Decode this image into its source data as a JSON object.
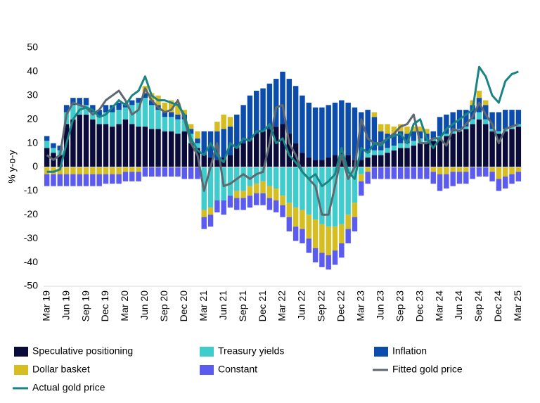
{
  "chart_data": {
    "type": "bar",
    "ylabel": "% y-o-y",
    "categories": [
      "Mar 19",
      null,
      null,
      "Jun 19",
      null,
      null,
      "Sep 19",
      null,
      null,
      "Dec 19",
      null,
      null,
      "Mar 20",
      null,
      null,
      "Jun 20",
      null,
      null,
      "Sep 20",
      null,
      null,
      "Dec 20",
      null,
      null,
      "Mar 21",
      null,
      null,
      "Jun 21",
      null,
      null,
      "Sep 21",
      null,
      null,
      "Dec 21",
      null,
      null,
      "Mar 22",
      null,
      null,
      "Jun 22",
      null,
      null,
      "Sep 22",
      null,
      null,
      "Dec 22",
      null,
      null,
      "Mar 23",
      null,
      null,
      "Jun 23",
      null,
      null,
      "Sep 23",
      null,
      null,
      "Dec 23",
      null,
      null,
      "Mar 24",
      null,
      null,
      "Jun 24",
      null,
      null,
      "Sep 24",
      null,
      null,
      "Dec 24",
      null,
      null,
      "Mar 25"
    ],
    "ylim": [
      -50,
      50
    ],
    "yticks": [
      -50,
      -40,
      -30,
      -20,
      -10,
      0,
      10,
      20,
      30,
      40,
      50
    ],
    "series": [
      {
        "name": "Speculative positioning",
        "color": "#0b0b3b",
        "values": [
          8,
          6,
          5,
          18,
          20,
          22,
          22,
          20,
          18,
          18,
          17,
          18,
          20,
          18,
          17,
          17,
          16,
          16,
          15,
          15,
          14,
          15,
          10,
          8,
          5,
          4,
          3,
          4,
          5,
          8,
          10,
          12,
          14,
          15,
          16,
          17,
          18,
          14,
          10,
          6,
          4,
          3,
          3,
          4,
          5,
          6,
          5,
          3,
          3,
          4,
          5,
          5,
          6,
          7,
          8,
          8,
          9,
          10,
          10,
          11,
          12,
          13,
          14,
          15,
          16,
          18,
          20,
          18,
          15,
          14,
          15,
          16,
          17
        ]
      },
      {
        "name": "Treasury yields",
        "color": "#40cccc",
        "values": [
          3,
          2,
          2,
          5,
          6,
          4,
          4,
          3,
          3,
          5,
          6,
          6,
          5,
          8,
          10,
          12,
          10,
          8,
          6,
          6,
          6,
          5,
          4,
          2,
          -18,
          -17,
          -14,
          -14,
          -12,
          -10,
          -10,
          -8,
          -7,
          -6,
          -8,
          -9,
          -12,
          -15,
          -17,
          -18,
          -20,
          -22,
          -24,
          -25,
          -25,
          -24,
          -20,
          -15,
          -3,
          2,
          2,
          2,
          2,
          2,
          2,
          2,
          2,
          2,
          1,
          1,
          1,
          1,
          1,
          1,
          1,
          2,
          3,
          2,
          1,
          1,
          1,
          1,
          1
        ]
      },
      {
        "name": "Inflation",
        "color": "#0b4cad",
        "values": [
          2,
          2,
          2,
          3,
          3,
          3,
          3,
          3,
          3,
          3,
          3,
          3,
          2,
          2,
          2,
          2,
          2,
          2,
          2,
          2,
          2,
          2,
          2,
          2,
          10,
          11,
          12,
          12,
          12,
          14,
          16,
          18,
          18,
          18,
          19,
          20,
          22,
          23,
          24,
          24,
          23,
          22,
          22,
          22,
          22,
          22,
          22,
          22,
          20,
          18,
          14,
          8,
          6,
          5,
          5,
          4,
          4,
          3,
          3,
          3,
          8,
          8,
          8,
          8,
          7,
          6,
          6,
          6,
          7,
          8,
          8,
          7,
          6
        ]
      },
      {
        "name": "Dollar basket",
        "color": "#d6bd22",
        "values": [
          -3,
          -3,
          -3,
          -3,
          -3,
          -3,
          -3,
          -3,
          -3,
          -3,
          -3,
          -3,
          -2,
          -2,
          -2,
          3,
          3,
          4,
          4,
          5,
          5,
          2,
          2,
          3,
          -3,
          -3,
          4,
          6,
          4,
          -3,
          -3,
          -4,
          -4,
          -5,
          -5,
          -5,
          -4,
          -6,
          -8,
          -8,
          -10,
          -12,
          -12,
          -12,
          -10,
          -8,
          -6,
          -6,
          -3,
          -2,
          2,
          3,
          4,
          3,
          3,
          3,
          2,
          2,
          2,
          -2,
          -3,
          -3,
          -2,
          -2,
          -2,
          2,
          3,
          2,
          -2,
          -5,
          -4,
          -3,
          -2
        ]
      },
      {
        "name": "Constant",
        "color": "#5b5bef",
        "values": [
          -5,
          -5,
          -5,
          -5,
          -5,
          -5,
          -5,
          -5,
          -5,
          -4,
          -4,
          -4,
          -4,
          -4,
          -4,
          -4,
          -4,
          -4,
          -4,
          -4,
          -4,
          -5,
          -5,
          -5,
          -5,
          -5,
          -5,
          -6,
          -5,
          -5,
          -5,
          -5,
          -5,
          -5,
          -5,
          -5,
          -5,
          -6,
          -6,
          -6,
          -6,
          -6,
          -6,
          -6,
          -6,
          -6,
          -6,
          -6,
          -6,
          -5,
          -5,
          -5,
          -5,
          -5,
          -5,
          -5,
          -5,
          -5,
          -5,
          -5,
          -7,
          -6,
          -6,
          -5,
          -5,
          -5,
          -4,
          -4,
          -4,
          -5,
          -5,
          -4,
          -4
        ]
      },
      {
        "name": "Fitted gold price",
        "type": "line",
        "color": "#5f6870",
        "values": [
          5,
          3,
          5,
          22,
          27,
          26,
          25,
          22,
          24,
          28,
          30,
          32,
          28,
          22,
          24,
          33,
          28,
          25,
          23,
          24,
          28,
          20,
          10,
          5,
          -10,
          0,
          10,
          -8,
          -7,
          -5,
          -3,
          -5,
          -3,
          -2,
          10,
          25,
          26,
          10,
          5,
          -2,
          -5,
          -8,
          -20,
          -20,
          -8,
          5,
          -5,
          0,
          20,
          12,
          10,
          10,
          12,
          14,
          17,
          18,
          22,
          10,
          10,
          12,
          12,
          9,
          16,
          15,
          18,
          21,
          27,
          22,
          18,
          10,
          16,
          17,
          18
        ]
      },
      {
        "name": "Actual gold price",
        "type": "line",
        "color": "#1a8484",
        "values": [
          -2,
          -2,
          -1,
          10,
          20,
          24,
          25,
          24,
          21,
          22,
          25,
          28,
          26,
          30,
          32,
          38,
          30,
          28,
          28,
          27,
          26,
          22,
          12,
          7,
          5,
          10,
          5,
          2,
          10,
          8,
          12,
          11,
          15,
          15,
          18,
          10,
          12,
          5,
          2,
          -2,
          -5,
          -3,
          -8,
          -6,
          -3,
          8,
          -2,
          -5,
          8,
          6,
          10,
          9,
          12,
          13,
          14,
          10,
          18,
          20,
          12,
          8,
          12,
          16,
          18,
          20,
          22,
          24,
          42,
          38,
          30,
          27,
          36,
          39,
          40
        ]
      }
    ]
  }
}
